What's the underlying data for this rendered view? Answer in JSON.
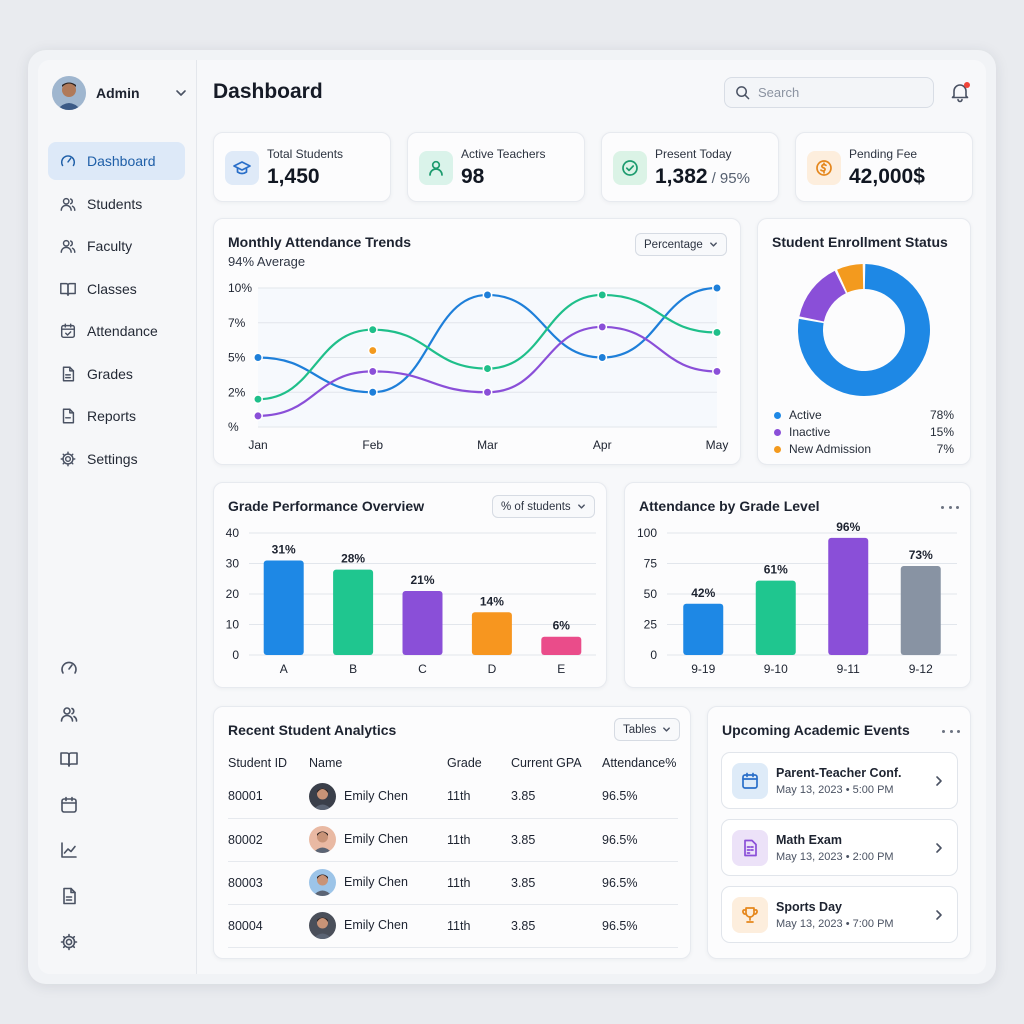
{
  "user": {
    "name": "Admin"
  },
  "sidebar": {
    "items": [
      {
        "label": "Dashboard",
        "icon": "dashboard-gauge-icon",
        "active": true
      },
      {
        "label": "Students",
        "icon": "users-icon"
      },
      {
        "label": "Faculty",
        "icon": "users-icon"
      },
      {
        "label": "Classes",
        "icon": "book-icon"
      },
      {
        "label": "Attendance",
        "icon": "calendar-check-icon"
      },
      {
        "label": "Grades",
        "icon": "document-icon"
      },
      {
        "label": "Reports",
        "icon": "report-icon"
      },
      {
        "label": "Settings",
        "icon": "gear-icon"
      }
    ],
    "mini_icons": [
      "dashboard-gauge-icon",
      "users-icon",
      "book-icon",
      "calendar-icon",
      "chart-line-icon",
      "document-icon",
      "gear-icon"
    ]
  },
  "header": {
    "title": "Dashboard",
    "search_placeholder": "Search"
  },
  "stats": [
    {
      "label": "Total Students",
      "value": "1,450",
      "sub": "",
      "icon": "graduation-cap-icon",
      "bg": "#dfeaf8",
      "fg": "#2a6fc9"
    },
    {
      "label": "Active Teachers",
      "value": "98",
      "sub": "",
      "icon": "user-icon",
      "bg": "#daf3ea",
      "fg": "#1c9b6e"
    },
    {
      "label": "Present Today",
      "value": "1,382",
      "sub": "/ 95%",
      "icon": "check-circle-icon",
      "bg": "#dbf3e6",
      "fg": "#1c9b6e"
    },
    {
      "label": "Pending Fee",
      "value": "42,000$",
      "sub": "",
      "icon": "coin-icon",
      "bg": "#fdeedd",
      "fg": "#e5871d"
    }
  ],
  "attendance_trends": {
    "title": "Monthly Attendance Trends",
    "subtitle": "94% Average",
    "dropdown": "Percentage"
  },
  "enrollment": {
    "title": "Student Enrollment Status",
    "items": [
      {
        "name": "Active",
        "value": "78%",
        "color": "#1e88e5"
      },
      {
        "name": "Inactive",
        "value": "15%",
        "color": "#8a4fd8"
      },
      {
        "name": "New Admission",
        "value": "7%",
        "color": "#f39a1e"
      }
    ]
  },
  "grade_performance": {
    "title": "Grade Performance Overview",
    "dropdown": "% of students"
  },
  "attendance_grade": {
    "title": "Attendance by Grade Level"
  },
  "analytics": {
    "title": "Recent Student Analytics",
    "dropdown": "Tables",
    "columns": [
      "Student ID",
      "Name",
      "Grade",
      "Current GPA",
      "Attendance%"
    ],
    "rows": [
      {
        "id": "80001",
        "name": "Emily Chen",
        "grade": "11th",
        "gpa": "3.85",
        "attendance": "96.5%",
        "avatar_bg": "#3a3f4a"
      },
      {
        "id": "80002",
        "name": "Emily Chen",
        "grade": "11th",
        "gpa": "3.85",
        "attendance": "96.5%",
        "avatar_bg": "#e9b9a3"
      },
      {
        "id": "80003",
        "name": "Emily Chen",
        "grade": "11th",
        "gpa": "3.85",
        "attendance": "96.5%",
        "avatar_bg": "#9cc4e8"
      },
      {
        "id": "80004",
        "name": "Emily Chen",
        "grade": "11th",
        "gpa": "3.85",
        "attendance": "96.5%",
        "avatar_bg": "#4a4f5a"
      }
    ]
  },
  "events": {
    "title": "Upcoming Academic Events",
    "items": [
      {
        "title": "Parent-Teacher Conf.",
        "time": "May 13, 2023 • 5:00 PM",
        "icon": "calendar-icon",
        "bg": "#deebf8",
        "fg": "#2a6fc9"
      },
      {
        "title": "Math Exam",
        "time": "May 13, 2023 • 2:00 PM",
        "icon": "exam-document-icon",
        "bg": "#ece2f8",
        "fg": "#8a4fd8"
      },
      {
        "title": "Sports Day",
        "time": "May 13, 2023 • 7:00 PM",
        "icon": "trophy-icon",
        "bg": "#fdeedd",
        "fg": "#e5871d"
      }
    ]
  },
  "chart_data": [
    {
      "type": "line",
      "title": "Monthly Attendance Trends",
      "x": [
        "Jan",
        "Feb",
        "Mar",
        "Apr",
        "May"
      ],
      "y_ticks": [
        "%",
        "2%",
        "5%",
        "7%",
        "10%"
      ],
      "ylim": [
        0,
        10
      ],
      "grid": true,
      "series": [
        {
          "color": "#1e7fd9",
          "values": [
            5,
            2.5,
            9.5,
            5,
            10
          ]
        },
        {
          "color": "#1fbf8a",
          "values": [
            2,
            7,
            4.2,
            9.5,
            6.8
          ]
        },
        {
          "color": "#8a4fd8",
          "values": [
            0.8,
            4,
            2.5,
            7.2,
            4
          ]
        },
        {
          "color": "#f39a1e",
          "values": [
            null,
            5.5,
            null,
            null,
            null
          ]
        }
      ]
    },
    {
      "type": "pie",
      "title": "Student Enrollment Status",
      "categories": [
        "Active",
        "Inactive",
        "New Admission"
      ],
      "values": [
        78,
        15,
        7
      ],
      "colors": [
        "#1e88e5",
        "#8a4fd8",
        "#f39a1e"
      ]
    },
    {
      "type": "bar",
      "title": "Grade Performance Overview",
      "categories": [
        "A",
        "B",
        "C",
        "D",
        "E"
      ],
      "values": [
        31,
        28,
        21,
        14,
        6
      ],
      "data_labels": [
        "31%",
        "28%",
        "21%",
        "14%",
        "6%"
      ],
      "colors": [
        "#1e88e5",
        "#1fc68f",
        "#8a4fd8",
        "#f7961f",
        "#ea4c8a"
      ],
      "y_ticks": [
        0,
        10,
        20,
        30,
        40
      ],
      "ylim": [
        0,
        40
      ],
      "grid": true
    },
    {
      "type": "bar",
      "title": "Attendance by Grade Level",
      "categories": [
        "9-19",
        "9-10",
        "9-11",
        "9-12"
      ],
      "values": [
        42,
        61,
        96,
        73
      ],
      "data_labels": [
        "42%",
        "61%",
        "96%",
        "73%"
      ],
      "colors": [
        "#1e88e5",
        "#1fc68f",
        "#8a4fd8",
        "#8893a3"
      ],
      "y_ticks": [
        0,
        25,
        50,
        75,
        100
      ],
      "ylim": [
        0,
        100
      ],
      "grid": true
    }
  ]
}
